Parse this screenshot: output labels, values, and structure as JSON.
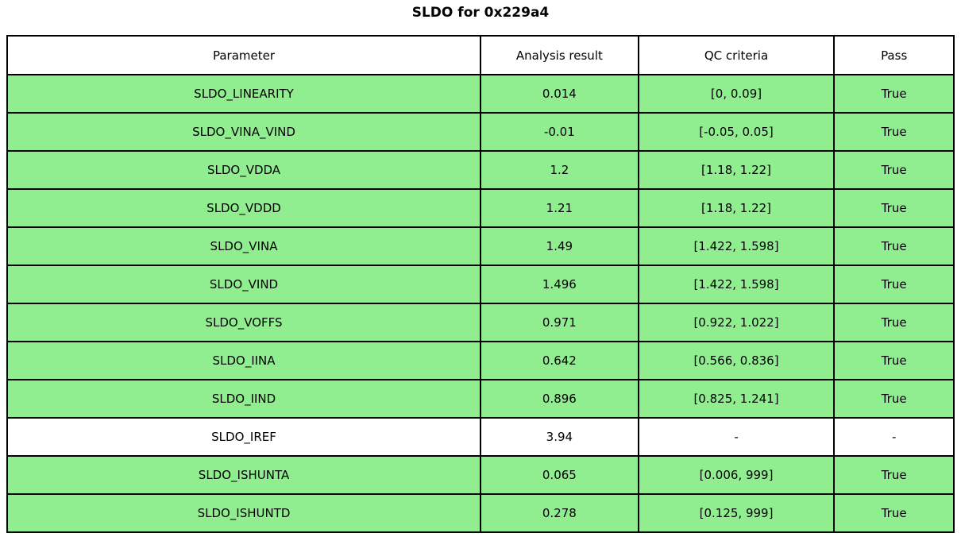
{
  "page": {
    "title": "SLDO for 0x229a4"
  },
  "colors": {
    "pass_row_bg": "#90EE90",
    "neutral_row_bg": "#ffffff",
    "border": "#000000",
    "background": "#ffffff"
  },
  "chart_data": {
    "type": "table",
    "title": "SLDO for 0x229a4",
    "columns": [
      "Parameter",
      "Analysis result",
      "QC criteria",
      "Pass"
    ],
    "column_keys": [
      "parameter",
      "analysis_result",
      "qc_criteria",
      "pass"
    ],
    "column_widths_pct": [
      50.0,
      16.67,
      20.69,
      12.64
    ],
    "header_bg": "#ffffff",
    "rows": [
      {
        "parameter": "SLDO_LINEARITY",
        "analysis_result": "0.014",
        "qc_criteria": "[0, 0.09]",
        "pass": "True",
        "passed": true
      },
      {
        "parameter": "SLDO_VINA_VIND",
        "analysis_result": "-0.01",
        "qc_criteria": "[-0.05, 0.05]",
        "pass": "True",
        "passed": true
      },
      {
        "parameter": "SLDO_VDDA",
        "analysis_result": "1.2",
        "qc_criteria": "[1.18, 1.22]",
        "pass": "True",
        "passed": true
      },
      {
        "parameter": "SLDO_VDDD",
        "analysis_result": "1.21",
        "qc_criteria": "[1.18, 1.22]",
        "pass": "True",
        "passed": true
      },
      {
        "parameter": "SLDO_VINA",
        "analysis_result": "1.49",
        "qc_criteria": "[1.422, 1.598]",
        "pass": "True",
        "passed": true
      },
      {
        "parameter": "SLDO_VIND",
        "analysis_result": "1.496",
        "qc_criteria": "[1.422, 1.598]",
        "pass": "True",
        "passed": true
      },
      {
        "parameter": "SLDO_VOFFS",
        "analysis_result": "0.971",
        "qc_criteria": "[0.922, 1.022]",
        "pass": "True",
        "passed": true
      },
      {
        "parameter": "SLDO_IINA",
        "analysis_result": "0.642",
        "qc_criteria": "[0.566, 0.836]",
        "pass": "True",
        "passed": true
      },
      {
        "parameter": "SLDO_IIND",
        "analysis_result": "0.896",
        "qc_criteria": "[0.825, 1.241]",
        "pass": "True",
        "passed": true
      },
      {
        "parameter": "SLDO_IREF",
        "analysis_result": "3.94",
        "qc_criteria": "-",
        "pass": "-",
        "passed": null
      },
      {
        "parameter": "SLDO_ISHUNTA",
        "analysis_result": "0.065",
        "qc_criteria": "[0.006, 999]",
        "pass": "True",
        "passed": true
      },
      {
        "parameter": "SLDO_ISHUNTD",
        "analysis_result": "0.278",
        "qc_criteria": "[0.125, 999]",
        "pass": "True",
        "passed": true
      }
    ]
  }
}
